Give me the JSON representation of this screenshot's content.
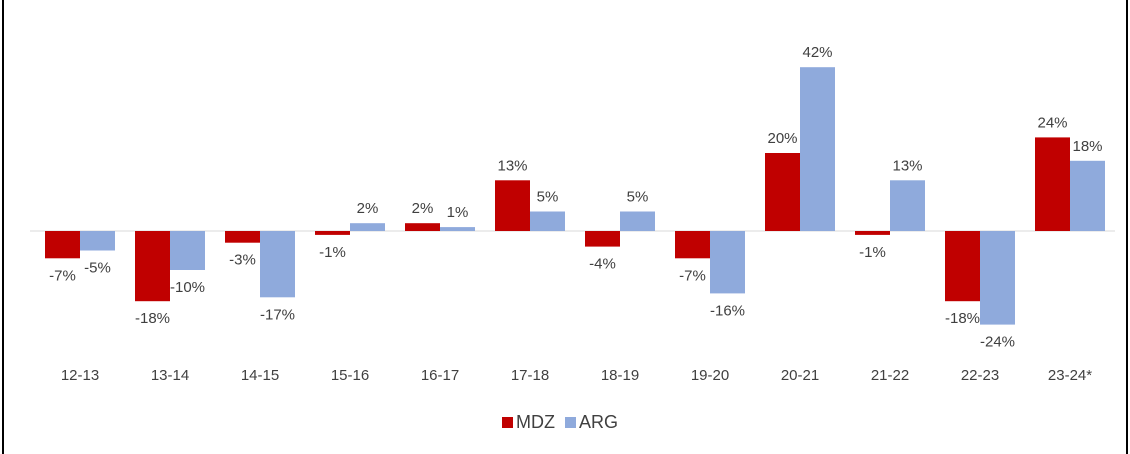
{
  "chart_data": {
    "type": "bar",
    "categories": [
      "12-13",
      "13-14",
      "14-15",
      "15-16",
      "16-17",
      "17-18",
      "18-19",
      "19-20",
      "20-21",
      "21-22",
      "22-23",
      "23-24*"
    ],
    "series": [
      {
        "name": "MDZ",
        "color": "#c00000",
        "values": [
          -7,
          -18,
          -3,
          -1,
          2,
          13,
          -4,
          -7,
          20,
          -1,
          -18,
          24
        ],
        "value_labels": [
          "-7%",
          "-18%",
          "-3%",
          "-1%",
          "2%",
          "13%",
          "-4%",
          "-7%",
          "20%",
          "-1%",
          "-18%",
          "24%"
        ]
      },
      {
        "name": "ARG",
        "color": "#8faadc",
        "values": [
          -5,
          -10,
          -17,
          2,
          1,
          5,
          5,
          -16,
          42,
          13,
          -24,
          18
        ],
        "value_labels": [
          "-5%",
          "-10%",
          "-17%",
          "2%",
          "1%",
          "5%",
          "5%",
          "-16%",
          "42%",
          "13%",
          "-24%",
          "18%"
        ]
      }
    ],
    "legend": "bottom"
  }
}
